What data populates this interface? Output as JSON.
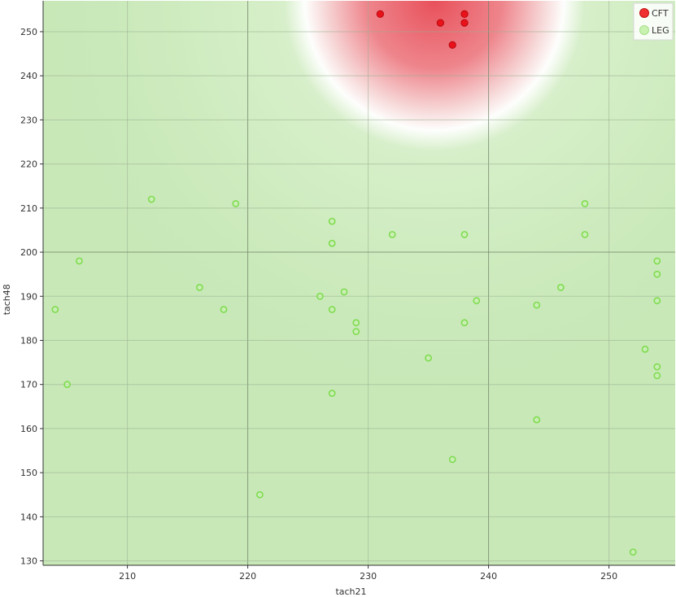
{
  "chart_data": {
    "type": "scatter",
    "xlabel": "tach21",
    "ylabel": "tach48",
    "xlim": [
      203,
      255.5
    ],
    "ylim": [
      129,
      257
    ],
    "x_ticks": [
      210,
      220,
      230,
      240,
      250
    ],
    "y_ticks": [
      130,
      140,
      150,
      160,
      170,
      180,
      190,
      200,
      210,
      220,
      230,
      240,
      250
    ],
    "major_grid_x": [
      220,
      240
    ],
    "major_grid_y": [
      200
    ],
    "grid": true,
    "legend_position": "top-right",
    "background": {
      "base_color": "#c8e8b8",
      "highlight_color": "#e8f6df",
      "hot_color": "#e8505a",
      "hot_center": [
        235.5,
        257
      ]
    },
    "series": [
      {
        "name": "CFT",
        "color": "#e8121a",
        "fill": "#e8121a",
        "points": [
          [
            231,
            254
          ],
          [
            236,
            252
          ],
          [
            238,
            254
          ],
          [
            238,
            252
          ],
          [
            237,
            247
          ]
        ]
      },
      {
        "name": "LEG",
        "color": "#7fdc50",
        "fill": "#c9f2b0",
        "points": [
          [
            204,
            187
          ],
          [
            205,
            170
          ],
          [
            206,
            198
          ],
          [
            212,
            212
          ],
          [
            216,
            192
          ],
          [
            218,
            187
          ],
          [
            219,
            211
          ],
          [
            221,
            145
          ],
          [
            226,
            190
          ],
          [
            227,
            207
          ],
          [
            227,
            202
          ],
          [
            227,
            187
          ],
          [
            227,
            168
          ],
          [
            228,
            191
          ],
          [
            229,
            184
          ],
          [
            229,
            182
          ],
          [
            232,
            204
          ],
          [
            235,
            176
          ],
          [
            237,
            153
          ],
          [
            238,
            204
          ],
          [
            238,
            184
          ],
          [
            239,
            189
          ],
          [
            244,
            188
          ],
          [
            244,
            162
          ],
          [
            246,
            192
          ],
          [
            248,
            211
          ],
          [
            248,
            204
          ],
          [
            252,
            132
          ],
          [
            253,
            178
          ],
          [
            254,
            198
          ],
          [
            254,
            195
          ],
          [
            254,
            189
          ],
          [
            254,
            174
          ],
          [
            254,
            172
          ]
        ]
      }
    ]
  }
}
